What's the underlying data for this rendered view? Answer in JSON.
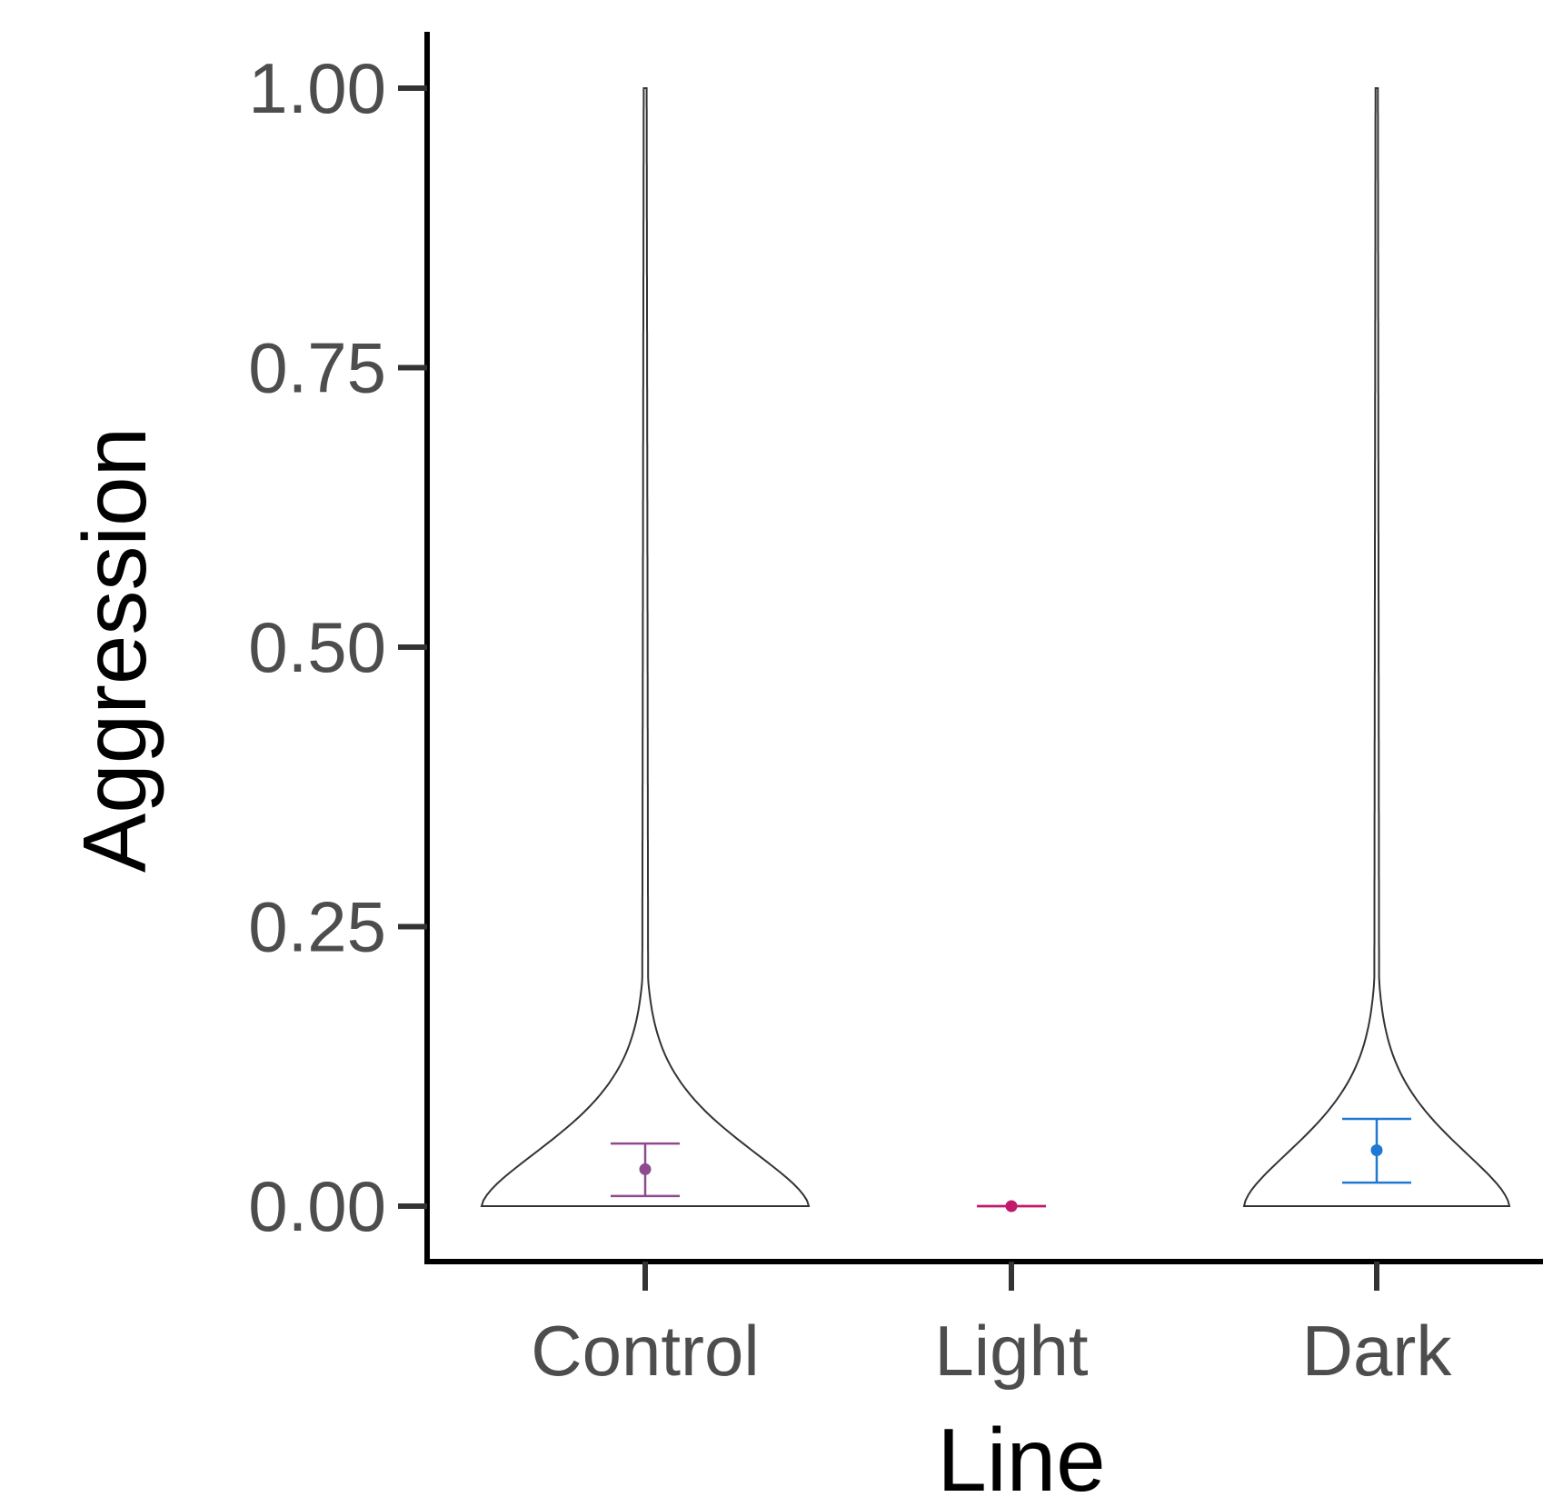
{
  "chart_data": {
    "type": "violin",
    "title": "",
    "xlabel": "Line",
    "ylabel": "Aggression",
    "categories": [
      "Control",
      "Light",
      "Dark"
    ],
    "ylim": [
      -0.05,
      1.05
    ],
    "yticks": [
      0,
      0.25,
      0.5,
      0.75,
      1
    ],
    "ytick_labels": [
      "0.00",
      "0.25",
      "0.50",
      "0.75",
      "1.00"
    ],
    "grid": false,
    "legend": "none",
    "series": [
      {
        "category": "Control",
        "color": "#8E4A8F",
        "violin_range": [
          0,
          1
        ],
        "max_density_width": 0.9,
        "mean": 0.033,
        "error_low": 0.009,
        "error_high": 0.056
      },
      {
        "category": "Light",
        "color": "#C2186B",
        "violin_range": [
          0,
          0
        ],
        "max_density_width": 0,
        "mean": 0,
        "error_low": 0,
        "error_high": 0
      },
      {
        "category": "Dark",
        "color": "#1F78D1",
        "violin_range": [
          0,
          1
        ],
        "max_density_width": 0.73,
        "mean": 0.05,
        "error_low": 0.021,
        "error_high": 0.078
      }
    ]
  }
}
